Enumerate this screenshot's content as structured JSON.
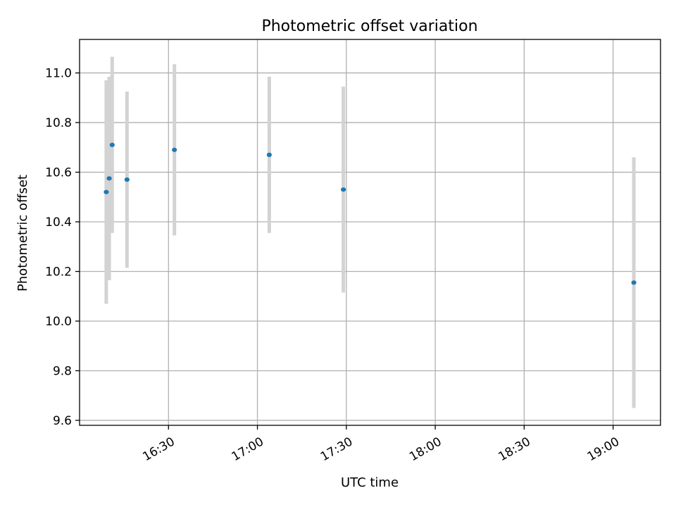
{
  "chart_data": {
    "type": "scatter",
    "title": "Photometric offset variation",
    "xlabel": "UTC time",
    "ylabel": "Photometric offset",
    "x_ticks": [
      "16:30",
      "17:00",
      "17:30",
      "18:00",
      "18:30",
      "19:00"
    ],
    "y_ticks": [
      "9.6",
      "9.8",
      "10.0",
      "10.2",
      "10.4",
      "10.6",
      "10.8",
      "11.0"
    ],
    "xlim": [
      "16:00",
      "19:16"
    ],
    "ylim": [
      9.58,
      11.135
    ],
    "grid": true,
    "marker_color": "#1f77b4",
    "errorbar_color": "#d3d3d3",
    "points": [
      {
        "time": "16:09",
        "y": 10.52,
        "yerr": 0.45
      },
      {
        "time": "16:10",
        "y": 10.575,
        "yerr": 0.41
      },
      {
        "time": "16:11",
        "y": 10.71,
        "yerr": 0.355
      },
      {
        "time": "16:16",
        "y": 10.57,
        "yerr": 0.355
      },
      {
        "time": "16:32",
        "y": 10.69,
        "yerr": 0.345
      },
      {
        "time": "17:04",
        "y": 10.67,
        "yerr": 0.315
      },
      {
        "time": "17:29",
        "y": 10.53,
        "yerr": 0.415
      },
      {
        "time": "19:07",
        "y": 10.155,
        "yerr": 0.505
      }
    ]
  }
}
